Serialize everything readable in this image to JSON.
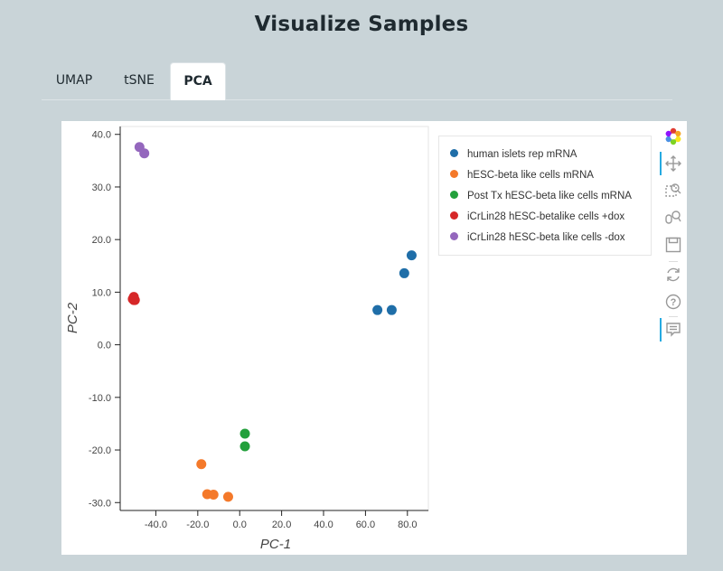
{
  "page": {
    "title": "Visualize Samples"
  },
  "tabs": [
    {
      "label": "UMAP",
      "active": false
    },
    {
      "label": "tSNE",
      "active": false
    },
    {
      "label": "PCA",
      "active": true
    }
  ],
  "toolbar": {
    "tools": [
      {
        "icon": "bokeh-logo-icon",
        "active": false
      },
      {
        "icon": "pan-icon",
        "active": true
      },
      {
        "icon": "box-zoom-icon",
        "active": false
      },
      {
        "icon": "wheel-zoom-icon",
        "active": false
      },
      {
        "icon": "save-icon",
        "active": false
      },
      {
        "icon": "reset-icon",
        "active": false
      },
      {
        "icon": "help-icon",
        "active": false
      },
      {
        "icon": "hover-icon",
        "active": true
      }
    ]
  },
  "chart_data": {
    "type": "scatter",
    "xlabel": "PC-1",
    "ylabel": "PC-2",
    "xlim": [
      -57,
      90
    ],
    "ylim": [
      -31.5,
      41.5
    ],
    "xticks": [
      "-40.0",
      "-20.0",
      "0.0",
      "20.0",
      "40.0",
      "60.0",
      "80.0"
    ],
    "xtick_values": [
      -40,
      -20,
      0,
      20,
      40,
      60,
      80
    ],
    "yticks": [
      "40.0",
      "30.0",
      "20.0",
      "10.0",
      "0.0",
      "-10.0",
      "-20.0",
      "-30.0"
    ],
    "ytick_values": [
      40,
      30,
      20,
      10,
      0,
      -10,
      -20,
      -30
    ],
    "legend_position": "top-right",
    "series": [
      {
        "name": "human islets rep mRNA",
        "color": "#1f6ea8",
        "points": [
          [
            82.0,
            17.0
          ],
          [
            78.5,
            13.6
          ],
          [
            72.5,
            6.6
          ],
          [
            65.7,
            6.6
          ]
        ]
      },
      {
        "name": "hESC-beta like cells mRNA",
        "color": "#f4792a",
        "points": [
          [
            -18.3,
            -22.7
          ],
          [
            -15.5,
            -28.4
          ],
          [
            -12.5,
            -28.5
          ],
          [
            -5.5,
            -28.9
          ]
        ]
      },
      {
        "name": "Post Tx hESC-beta like cells mRNA",
        "color": "#23a03c",
        "points": [
          [
            2.5,
            -16.9
          ],
          [
            2.5,
            -19.3
          ]
        ]
      },
      {
        "name": "iCrLin28 hESC-betalike cells +dox",
        "color": "#d62728",
        "points": [
          [
            -50.5,
            9.1
          ],
          [
            -50.5,
            8.5
          ],
          [
            -50.0,
            8.5
          ],
          [
            -51.0,
            8.7
          ]
        ]
      },
      {
        "name": "iCrLin28 hESC-beta like cells -dox",
        "color": "#9467bd",
        "points": [
          [
            -47.8,
            37.6
          ],
          [
            -45.5,
            36.4
          ]
        ]
      }
    ]
  }
}
